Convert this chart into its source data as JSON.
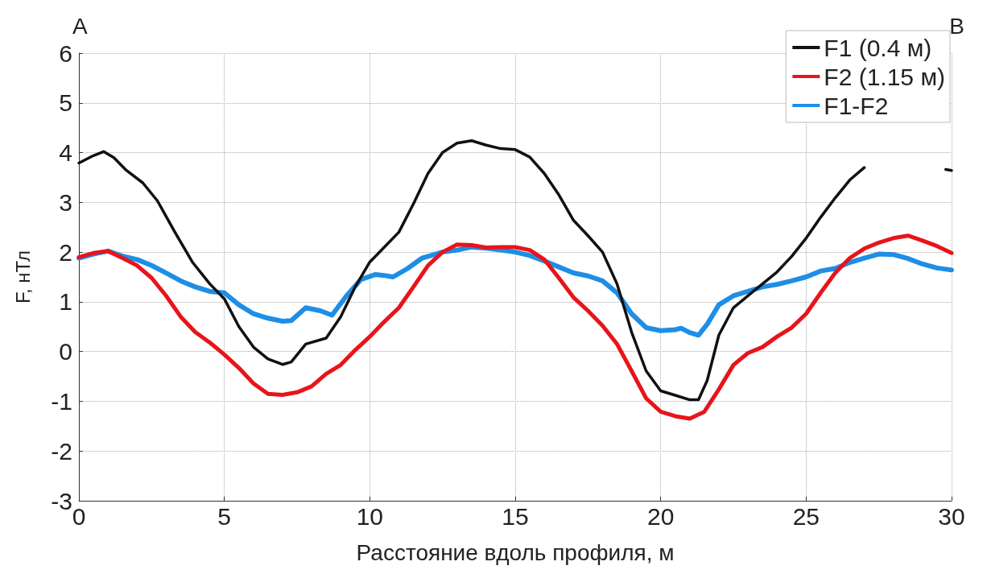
{
  "chart_data": {
    "type": "line",
    "xlabel": "Расстояние вдоль профиля, м",
    "ylabel": "F, нТл",
    "annotations": [
      "A",
      "B"
    ],
    "xlim": [
      0,
      30
    ],
    "xticks": [
      0,
      5,
      10,
      15,
      20,
      25,
      30
    ],
    "ylim": [
      -3,
      6
    ],
    "yticks": [
      -3,
      -2,
      -1,
      0,
      1,
      2,
      3,
      4,
      5,
      6
    ],
    "grid": true,
    "legend": "top right",
    "marker": "none",
    "line_style": "solid",
    "series": [
      {
        "name": "F1 (0.4 м)",
        "color": "#111111",
        "x": [
          0,
          0.5,
          0.85,
          1.2,
          1.6,
          2.2,
          2.7,
          3.3,
          3.9,
          4.5,
          5,
          5.5,
          6,
          6.5,
          7,
          7.3,
          7.8,
          8.5,
          9,
          9.5,
          10,
          10.5,
          11,
          11.5,
          12,
          12.5,
          13,
          13.5,
          14,
          14.5,
          15,
          15.5,
          16,
          16.5,
          17,
          17.5,
          18,
          18.5,
          19,
          19.5,
          20,
          20.5,
          21,
          21.3,
          21.6,
          22,
          22.5,
          23,
          23.5,
          24,
          24.5,
          25,
          25.5,
          26,
          26.5,
          27,
          28,
          29.8,
          30
        ],
        "values": [
          3.79,
          3.94,
          4.02,
          3.9,
          3.66,
          3.39,
          3.03,
          2.4,
          1.8,
          1.36,
          1.06,
          0.5,
          0.09,
          -0.15,
          -0.26,
          -0.21,
          0.15,
          0.27,
          0.7,
          1.3,
          1.8,
          2.1,
          2.4,
          2.97,
          3.58,
          4.0,
          4.19,
          4.24,
          4.15,
          4.08,
          4.06,
          3.91,
          3.58,
          3.15,
          2.64,
          2.33,
          2.0,
          1.36,
          0.39,
          -0.39,
          -0.79,
          -0.88,
          -0.97,
          -0.97,
          -0.58,
          0.33,
          0.88,
          1.12,
          1.36,
          1.6,
          1.91,
          2.28,
          2.7,
          3.09,
          3.45,
          3.7,
          null,
          3.66,
          3.64
        ]
      },
      {
        "name": "F2 (1.15 м)",
        "color": "#e8141b",
        "x": [
          0,
          0.5,
          1,
          1.5,
          2,
          2.5,
          3,
          3.5,
          4,
          4.5,
          5,
          5.5,
          6,
          6.5,
          7,
          7.5,
          8,
          8.5,
          9,
          9.5,
          10,
          10.5,
          11,
          11.5,
          12,
          12.5,
          13,
          13.5,
          14,
          14.5,
          15,
          15.5,
          16,
          16.5,
          17,
          17.5,
          18,
          18.5,
          19,
          19.5,
          20,
          20.5,
          21,
          21.5,
          22,
          22.5,
          23,
          23.5,
          24,
          24.5,
          25,
          25.5,
          26,
          26.5,
          27,
          27.5,
          28,
          28.5,
          29,
          29.5,
          30
        ],
        "values": [
          1.9,
          1.98,
          2.02,
          1.88,
          1.73,
          1.48,
          1.12,
          0.7,
          0.39,
          0.18,
          -0.06,
          -0.33,
          -0.64,
          -0.85,
          -0.87,
          -0.82,
          -0.7,
          -0.45,
          -0.27,
          0.03,
          0.3,
          0.6,
          0.88,
          1.3,
          1.73,
          2.0,
          2.15,
          2.14,
          2.09,
          2.1,
          2.1,
          2.04,
          1.85,
          1.48,
          1.09,
          0.82,
          0.52,
          0.15,
          -0.39,
          -0.94,
          -1.21,
          -1.3,
          -1.35,
          -1.21,
          -0.76,
          -0.27,
          -0.03,
          0.09,
          0.3,
          0.48,
          0.76,
          1.18,
          1.58,
          1.88,
          2.07,
          2.19,
          2.28,
          2.33,
          2.23,
          2.12,
          1.98
        ]
      },
      {
        "name": "F1-F2",
        "color": "#1e8ee6",
        "x": [
          0,
          0.5,
          1,
          1.5,
          2,
          2.5,
          3,
          3.5,
          4,
          4.5,
          5,
          5.5,
          6,
          6.5,
          7,
          7.3,
          7.8,
          8.3,
          8.7,
          9.2,
          9.7,
          10.2,
          10.5,
          10.8,
          11.3,
          11.8,
          12.5,
          13,
          13.5,
          14,
          14.5,
          15,
          15.5,
          16,
          16.5,
          17,
          17.5,
          18,
          18.5,
          19,
          19.5,
          20,
          20.5,
          20.7,
          21,
          21.3,
          21.6,
          22,
          22.5,
          23,
          23.5,
          24,
          24.5,
          25,
          25.5,
          26,
          26.5,
          27,
          27.5,
          28,
          28.5,
          29,
          29.5,
          30
        ],
        "values": [
          1.88,
          1.96,
          2.02,
          1.92,
          1.85,
          1.73,
          1.58,
          1.42,
          1.3,
          1.21,
          1.18,
          0.94,
          0.76,
          0.67,
          0.61,
          0.62,
          0.88,
          0.82,
          0.73,
          1.12,
          1.45,
          1.55,
          1.53,
          1.5,
          1.67,
          1.88,
          2.0,
          2.04,
          2.1,
          2.08,
          2.04,
          2.0,
          1.93,
          1.82,
          1.7,
          1.58,
          1.52,
          1.42,
          1.18,
          0.76,
          0.48,
          0.42,
          0.44,
          0.47,
          0.38,
          0.33,
          0.55,
          0.94,
          1.12,
          1.21,
          1.3,
          1.35,
          1.42,
          1.5,
          1.62,
          1.67,
          1.79,
          1.88,
          1.96,
          1.95,
          1.87,
          1.76,
          1.68,
          1.64
        ]
      }
    ]
  }
}
